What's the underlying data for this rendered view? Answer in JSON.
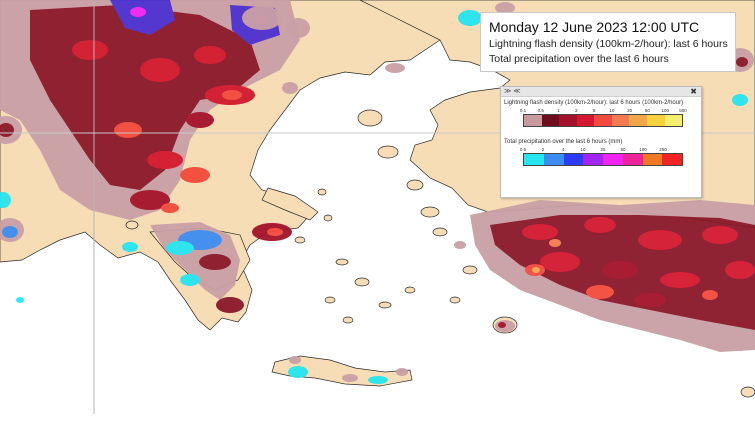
{
  "title": {
    "line1": "Monday 12 June 2023 12:00 UTC",
    "line2": "Lightning flash density (100km-2/hour): last 6 hours",
    "line3": "Total precipitation over the last 6 hours"
  },
  "legend": {
    "controls": "≫ ≪",
    "close": "✖",
    "lightning": {
      "title": "Lightning flash density (100km-2/hour): last 6 hours (100km-2/hour)",
      "ticks": [
        "0.1",
        "0.5",
        "1",
        "2",
        "5",
        "10",
        "20",
        "50",
        "100",
        "500"
      ],
      "colors": [
        "#c89aa0",
        "#6e0d1c",
        "#a3122a",
        "#d3182f",
        "#f24a3c",
        "#f27b52",
        "#f2a64a",
        "#f6d33c",
        "#f6ef6c"
      ]
    },
    "precip": {
      "title": "Total precipitation over the last 6 hours (mm)",
      "ticks": [
        "0.5",
        "2",
        "4",
        "10",
        "25",
        "50",
        "100",
        "250"
      ],
      "colors": [
        "#25e6f0",
        "#3d8cf0",
        "#2d3cf0",
        "#a424f0",
        "#f024f0",
        "#f0249a",
        "#f07a24",
        "#f02424"
      ]
    }
  }
}
